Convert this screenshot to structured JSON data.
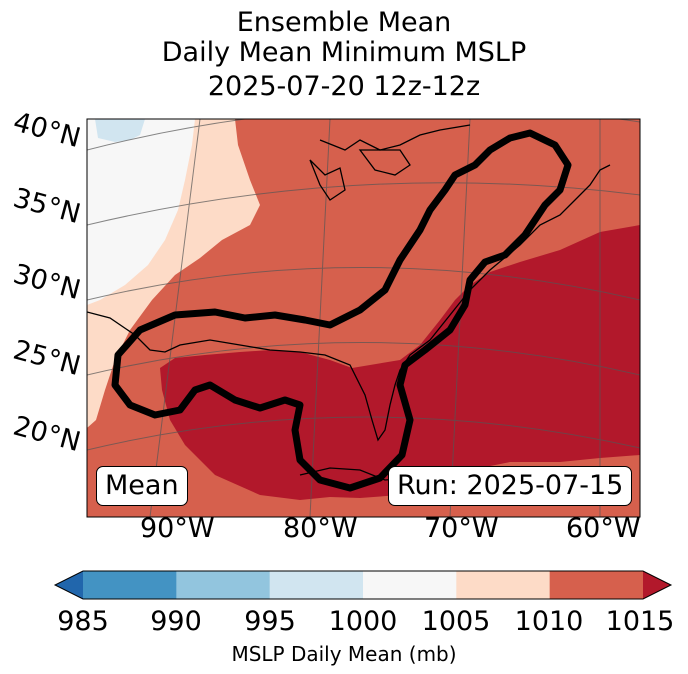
{
  "title": {
    "line1": "Ensemble Mean",
    "line2": "Daily Mean Minimum MSLP",
    "line3": "2025-07-20 12z-12z"
  },
  "map": {
    "lat_labels": [
      "40°N",
      "35°N",
      "30°N",
      "25°N",
      "20°N"
    ],
    "lon_labels": [
      "90°W",
      "80°W",
      "70°W",
      "60°W"
    ],
    "mean_badge": "Mean",
    "run_badge": "Run: 2025-07-15"
  },
  "colorbar": {
    "ticks": [
      "985",
      "990",
      "995",
      "1000",
      "1005",
      "1010",
      "1015"
    ],
    "label": "MSLP Daily Mean (mb)",
    "bins": [
      {
        "range": "985-990",
        "color": "#4393c3"
      },
      {
        "range": "990-995",
        "color": "#92c5de"
      },
      {
        "range": "995-1000",
        "color": "#d1e5f0"
      },
      {
        "range": "1000-1005",
        "color": "#f7f7f7"
      },
      {
        "range": "1005-1010",
        "color": "#fddbc7"
      },
      {
        "range": "1010-1015",
        "color": "#d6604d"
      }
    ],
    "under_color": "#2166ac",
    "over_color": "#b2182b"
  },
  "colors": {
    "high": "#b2182b",
    "mid": "#d6604d",
    "light": "#fddbc7",
    "white": "#f7f7f7",
    "pale_blue": "#d1e5f0"
  }
}
